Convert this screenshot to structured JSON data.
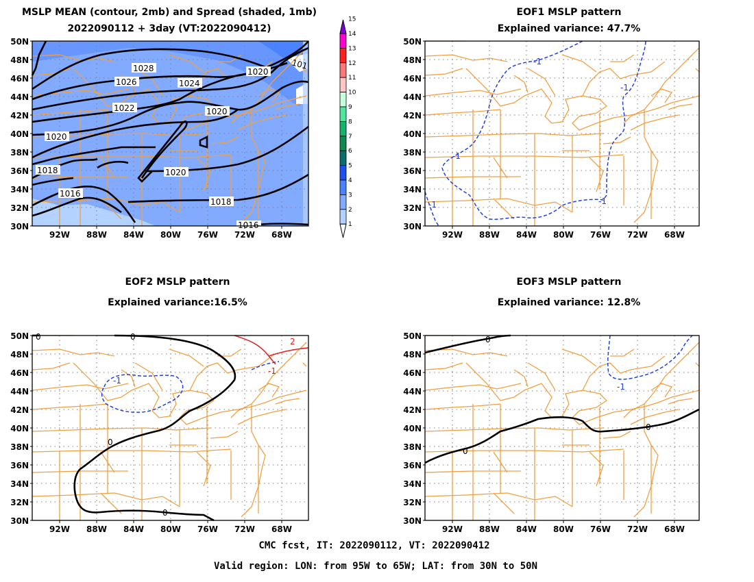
{
  "panels": [
    {
      "id": "mean",
      "title_lines": [
        "MSLP MEAN (contour, 2mb) and Spread (shaded, 1mb)",
        "2022090112 + 3day (VT:2022090412)"
      ],
      "contour_labels": [
        "1028",
        "1026",
        "1024",
        "1022",
        "1020",
        "1020",
        "1020",
        "1020",
        "1018",
        "1016",
        "1018",
        "1016",
        "101"
      ]
    },
    {
      "id": "eof1",
      "title_lines": [
        "EOF1 MSLP pattern",
        "Explained variance: 47.7%"
      ],
      "contour_labels": [
        "-1",
        "-1",
        "-1",
        "-1",
        "-1"
      ]
    },
    {
      "id": "eof2",
      "title_lines": [
        "EOF2 MSLP pattern",
        "Explained variance:16.5%"
      ],
      "contour_labels": [
        "0",
        "0",
        "0",
        "0",
        "-1",
        "2",
        "-1"
      ]
    },
    {
      "id": "eof3",
      "title_lines": [
        "EOF3 MSLP pattern",
        "Explained variance: 12.8%"
      ],
      "contour_labels": [
        "0",
        "0",
        "0",
        "-1"
      ]
    }
  ],
  "axes": {
    "lat_labels": [
      "50N",
      "48N",
      "46N",
      "44N",
      "42N",
      "40N",
      "38N",
      "36N",
      "34N",
      "32N",
      "30N"
    ],
    "lon_labels": [
      "92W",
      "88W",
      "84W",
      "80W",
      "76W",
      "72W",
      "68W"
    ]
  },
  "colorbar": {
    "labels": [
      "1",
      "2",
      "3",
      "4",
      "5",
      "6",
      "7",
      "8",
      "9",
      "10",
      "11",
      "12",
      "13",
      "14",
      "15"
    ],
    "colors": [
      "#ffffff",
      "#b4d2ff",
      "#82aaff",
      "#4b82ff",
      "#1e50f0",
      "#0a6e6e",
      "#0a8c50",
      "#14b46e",
      "#50e6a0",
      "#c8ffdc",
      "#ffc8c8",
      "#ff7878",
      "#ff2020",
      "#ff00d2",
      "#8200dc"
    ]
  },
  "footer": {
    "line1": "CMC fcst, IT: 2022090112, VT: 2022090412",
    "line2": "Valid region: LON: from 95W to 65W; LAT: from 30N to 50N"
  },
  "colors": {
    "map": "#f0a040",
    "contour": "#000000",
    "negative": "#2040e0",
    "positive": "#e02020",
    "shading": "#82aaff",
    "grid": "#808080"
  }
}
